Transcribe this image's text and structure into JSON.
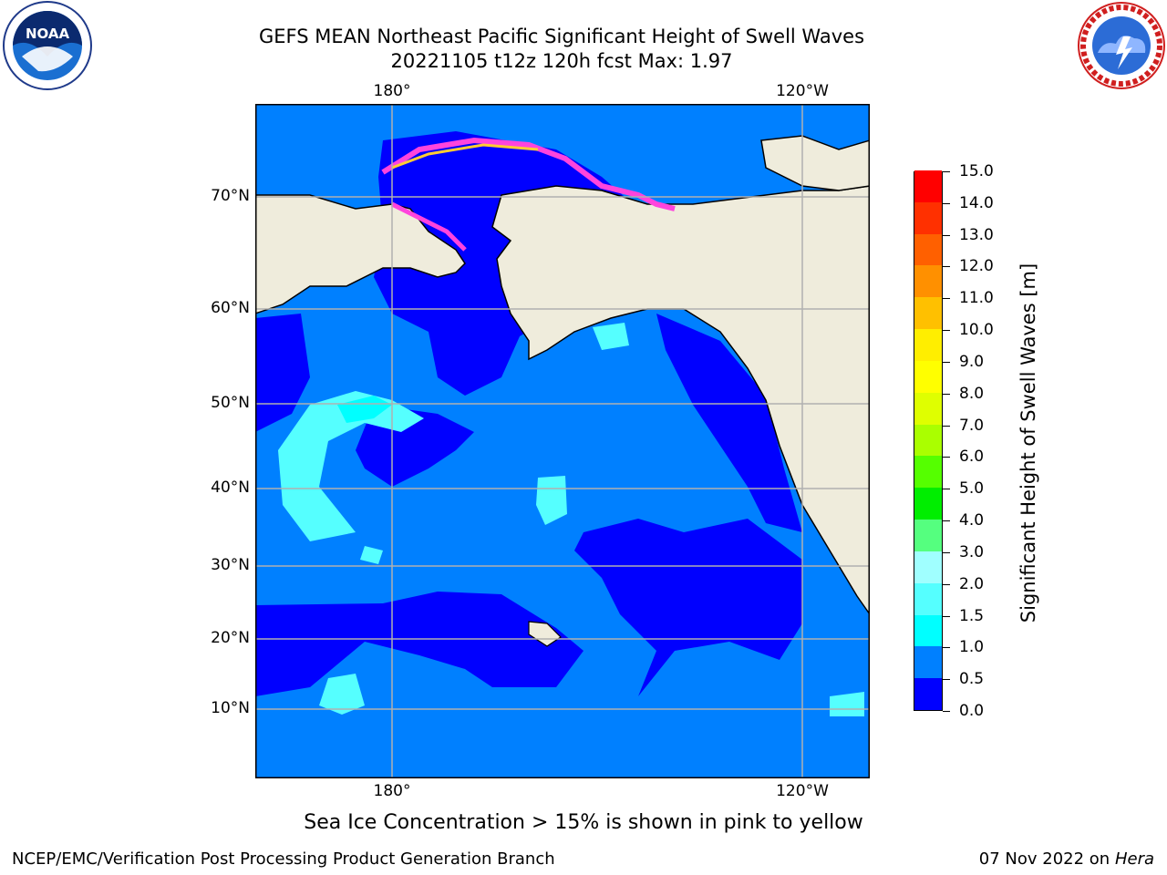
{
  "header": {
    "title_line1": "GEFS MEAN Northeast Pacific Significant Height of Swell Waves",
    "title_line2": "20221105 t12z 120h fcst   Max: 1.97"
  },
  "logos": {
    "left": {
      "name": "noaa-logo",
      "text": "NOAA"
    },
    "right": {
      "name": "nws-logo",
      "ring_text": "NATIONAL WEATHER SERVICE"
    }
  },
  "map": {
    "lon_labels_top": [
      "180°",
      "120°W"
    ],
    "lon_labels_bottom": [
      "180°",
      "120°W"
    ],
    "lat_labels": [
      "70°N",
      "60°N",
      "50°N",
      "40°N",
      "30°N",
      "20°N",
      "10°N"
    ],
    "colors": {
      "land": "#efecdc",
      "deep_blue": "#0000ff",
      "mid_blue": "#0080ff",
      "cyan": "#00ffff",
      "light_cyan": "#55ffff",
      "ice_pink": "#ff44dd",
      "ice_yellow": "#ffcc33",
      "grid": "#b0b0b0"
    }
  },
  "colorbar": {
    "title": "Significant Height of Swell Waves [m]",
    "tick_labels": [
      "15.0",
      "14.0",
      "13.0",
      "12.0",
      "11.0",
      "10.0",
      "9.0",
      "8.0",
      "7.0",
      "6.0",
      "5.0",
      "4.0",
      "3.0",
      "2.0",
      "1.5",
      "1.0",
      "0.5",
      "0.0"
    ],
    "segment_colors": [
      "#0000ff",
      "#0080ff",
      "#00ffff",
      "#55ffff",
      "#a0ffff",
      "#55ff7f",
      "#00ee00",
      "#55ff00",
      "#aaff00",
      "#dfff00",
      "#ffff00",
      "#ffee00",
      "#ffc000",
      "#ff9000",
      "#ff6000",
      "#ff3000",
      "#ff0000"
    ]
  },
  "footer": {
    "note": "Sea Ice Concentration > 15% is shown in pink to yellow",
    "credit": "NCEP/EMC/Verification Post Processing Product Generation Branch",
    "date": "07 Nov 2022 on",
    "machine": "Hera"
  }
}
